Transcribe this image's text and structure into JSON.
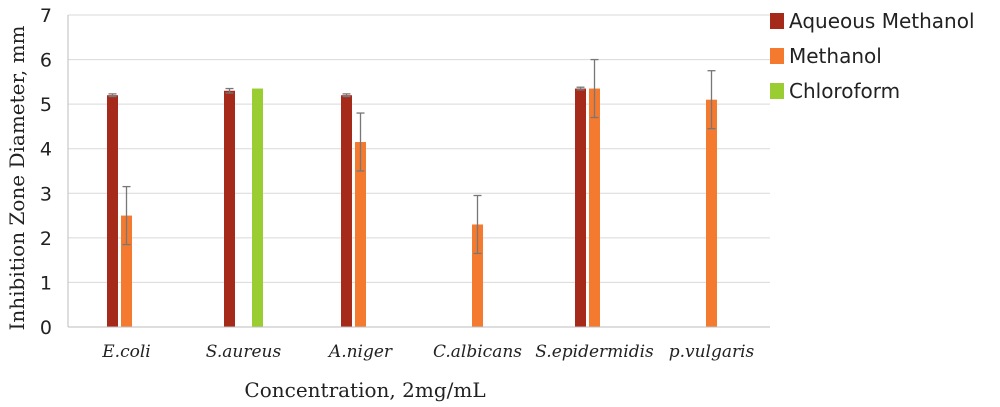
{
  "chart_data": {
    "type": "bar",
    "categories": [
      "E.coli",
      "S.aureus",
      "A.niger",
      "C.albicans",
      "S.epidermidis",
      "p.vulgaris"
    ],
    "series": [
      {
        "name": "Aqueous Methanol",
        "color": "#a52a1a",
        "values": [
          5.2,
          5.3,
          5.2,
          null,
          5.35,
          null
        ],
        "errors": [
          0.03,
          0.05,
          0.03,
          null,
          0.03,
          null
        ]
      },
      {
        "name": "Methanol",
        "color": "#f47a30",
        "values": [
          2.5,
          null,
          4.15,
          2.3,
          5.35,
          5.1
        ],
        "errors": [
          0.65,
          null,
          0.65,
          0.65,
          0.65,
          0.65
        ]
      },
      {
        "name": "Chloroform",
        "color": "#9acd32",
        "values": [
          null,
          5.35,
          null,
          null,
          null,
          null
        ],
        "errors": [
          null,
          null,
          null,
          null,
          null,
          null
        ]
      }
    ],
    "xlabel": "Concentration, 2mg/mL",
    "ylabel": "Inhibition Zone Diameter, mm",
    "ylim": [
      0,
      7
    ],
    "yticks": [
      0,
      1,
      2,
      3,
      4,
      5,
      6,
      7
    ],
    "grid": true,
    "legend_position": "top-right"
  }
}
